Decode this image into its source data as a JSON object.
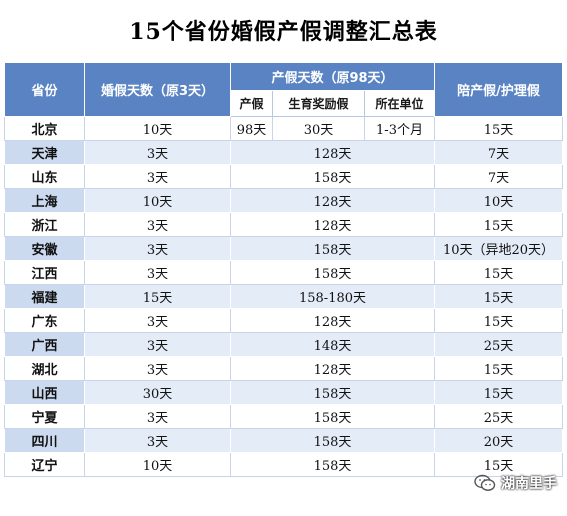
{
  "title": "15个省份婚假产假调整汇总表",
  "header": {
    "province": "省份",
    "marriage": "婚假天数（原3天）",
    "maternity": "产假天数（原98天）",
    "maternity_sub": [
      "产假",
      "生育奖励假",
      "所在单位"
    ],
    "paternity": "陪产假/护理假"
  },
  "beijing": {
    "province": "北京",
    "marriage": "10天",
    "maternity_base": "98天",
    "maternity_reward": "30天",
    "maternity_unit": "1-3个月",
    "paternity": "15天"
  },
  "rows": [
    {
      "province": "天津",
      "marriage": "3天",
      "maternity": "128天",
      "paternity": "7天"
    },
    {
      "province": "山东",
      "marriage": "3天",
      "maternity": "158天",
      "paternity": "7天"
    },
    {
      "province": "上海",
      "marriage": "10天",
      "maternity": "128天",
      "paternity": "10天"
    },
    {
      "province": "浙江",
      "marriage": "3天",
      "maternity": "128天",
      "paternity": "15天"
    },
    {
      "province": "安徽",
      "marriage": "3天",
      "maternity": "158天",
      "paternity": "10天（异地20天）"
    },
    {
      "province": "江西",
      "marriage": "3天",
      "maternity": "158天",
      "paternity": "15天"
    },
    {
      "province": "福建",
      "marriage": "15天",
      "maternity": "158-180天",
      "paternity": "15天"
    },
    {
      "province": "广东",
      "marriage": "3天",
      "maternity": "128天",
      "paternity": "15天"
    },
    {
      "province": "广西",
      "marriage": "3天",
      "maternity": "148天",
      "paternity": "25天"
    },
    {
      "province": "湖北",
      "marriage": "3天",
      "maternity": "128天",
      "paternity": "15天"
    },
    {
      "province": "山西",
      "marriage": "30天",
      "maternity": "158天",
      "paternity": "15天"
    },
    {
      "province": "宁夏",
      "marriage": "3天",
      "maternity": "158天",
      "paternity": "25天"
    },
    {
      "province": "四川",
      "marriage": "3天",
      "maternity": "158天",
      "paternity": "20天"
    },
    {
      "province": "辽宁",
      "marriage": "10天",
      "maternity": "158天",
      "paternity": "15天"
    }
  ],
  "watermark": {
    "text": "湖南里手",
    "icon": "wechat-icon"
  }
}
